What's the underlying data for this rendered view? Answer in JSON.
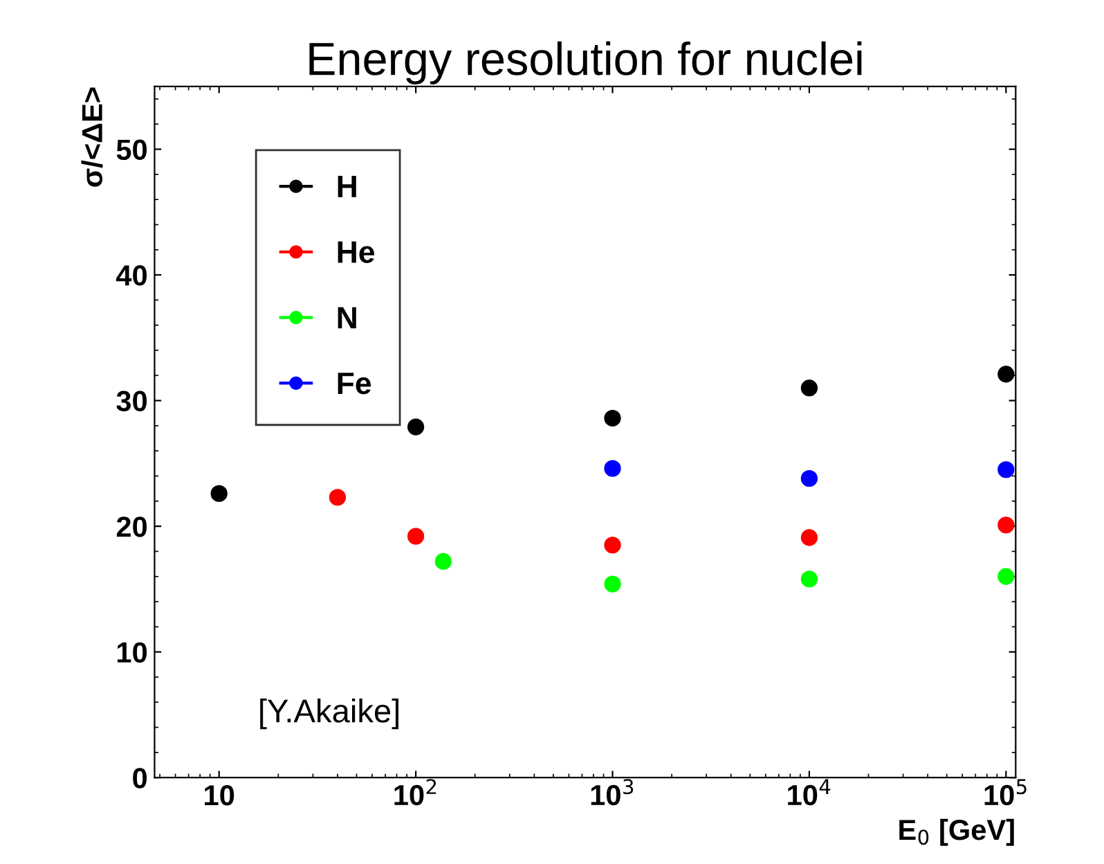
{
  "chart_data": {
    "type": "scatter",
    "title": "Energy resolution for nuclei",
    "xlabel": "E$_{0}$ [GeV]",
    "ylabel": "σ/<ΔE>",
    "log": "x",
    "xlim": [
      4.7,
      112000
    ],
    "ylim": [
      0,
      55
    ],
    "xticks": [
      {
        "value": 10,
        "label": "10"
      },
      {
        "value": 100,
        "label": "10$^{2}$"
      },
      {
        "value": 1000,
        "label": "10$^{3}$"
      },
      {
        "value": 10000,
        "label": "10$^{4}$"
      },
      {
        "value": 100000,
        "label": "10$^{5}$"
      }
    ],
    "yticks": [
      0,
      10,
      20,
      30,
      40,
      50
    ],
    "marker": "circle",
    "legend": "top left",
    "grid": false,
    "annotations": [
      {
        "text": "[Y.Akaike]"
      }
    ],
    "series": [
      {
        "name": "H",
        "color": "#000000",
        "x": [
          10,
          100,
          1000,
          10000,
          100000
        ],
        "values": [
          22.6,
          27.9,
          28.6,
          31.0,
          32.1
        ]
      },
      {
        "name": "He",
        "color": "#ff0000",
        "x": [
          40,
          100,
          1000,
          10000,
          100000
        ],
        "values": [
          22.3,
          19.2,
          18.5,
          19.1,
          20.1
        ]
      },
      {
        "name": "N",
        "color": "#00ff00",
        "x": [
          138,
          1000,
          10000,
          100000
        ],
        "values": [
          17.2,
          15.4,
          15.8,
          16.0
        ]
      },
      {
        "name": "Fe",
        "color": "#0000ff",
        "x": [
          1000,
          10000,
          100000
        ],
        "values": [
          24.6,
          23.8,
          24.5
        ]
      }
    ]
  }
}
